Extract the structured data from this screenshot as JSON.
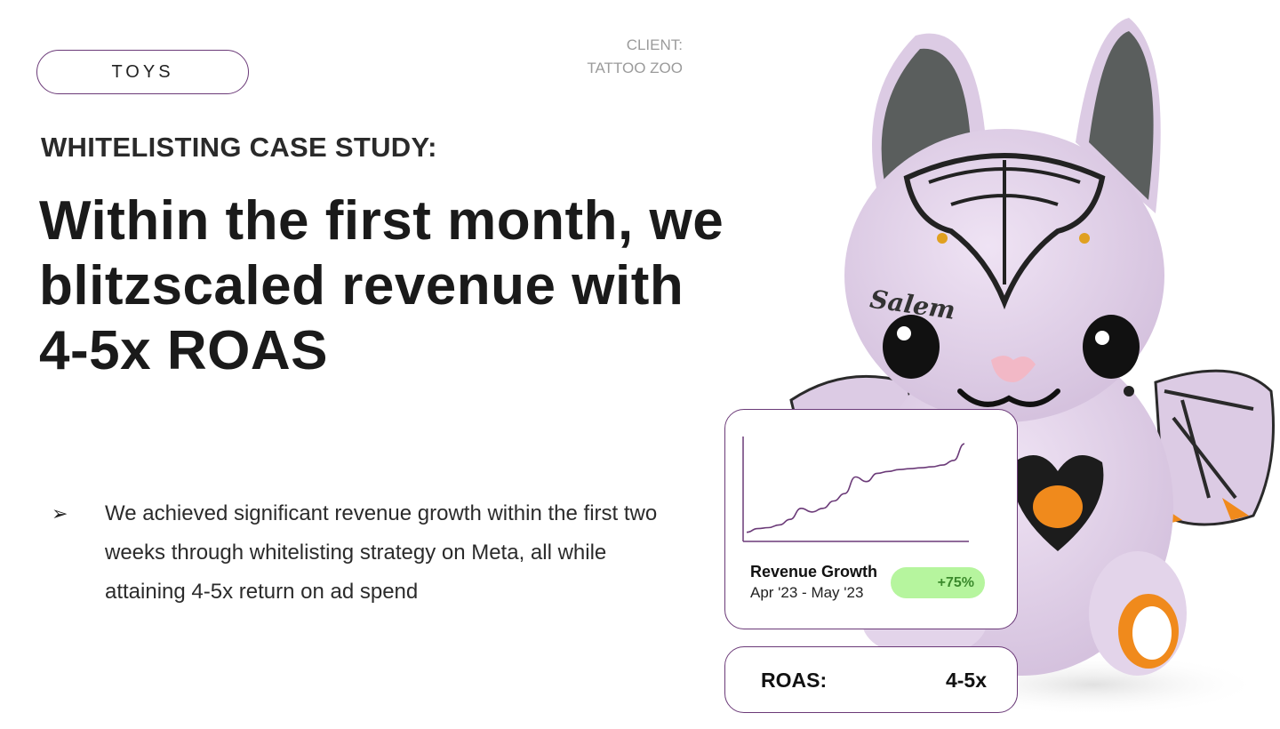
{
  "category_tag": "TOYS",
  "client": {
    "label": "CLIENT:",
    "name": "TATTOO ZOO"
  },
  "eyebrow": "WHITELISTING CASE STUDY:",
  "headline": {
    "line1": "Within the first month, we",
    "line2": "blitzscaled revenue with",
    "line3": "4-5x ROAS"
  },
  "bullet": {
    "icon": "arrow-bullet-icon",
    "line1": "We achieved significant revenue growth within the first two",
    "line2": "weeks through whitelisting strategy on Meta, all while",
    "line3": "attaining 4-5x return on ad spend"
  },
  "product_image": {
    "icon": "plush-bat-toy-illustration",
    "embroidery_text": "Salem"
  },
  "revenue_card": {
    "title": "Revenue Growth",
    "range": "Apr '23 - May '23",
    "badge": "+75%"
  },
  "chart_data": {
    "type": "line",
    "title": "",
    "xlabel": "",
    "ylabel": "",
    "x": [
      0,
      1,
      2,
      3,
      4,
      5,
      6,
      7,
      8,
      9,
      10,
      11,
      12,
      13,
      14,
      15,
      16,
      17,
      18,
      19,
      20
    ],
    "values": [
      8,
      12,
      13,
      16,
      22,
      34,
      30,
      34,
      42,
      50,
      68,
      63,
      72,
      74,
      76,
      77,
      78,
      79,
      81,
      86,
      104
    ],
    "ylim": [
      0,
      110
    ],
    "grid": false,
    "color": "#6b3a78"
  },
  "roas_card": {
    "label": "ROAS:",
    "value": "4-5x"
  },
  "colors": {
    "accent_border": "#6b3a78",
    "badge_bg": "#b6f59e",
    "badge_text": "#3b8a2c"
  }
}
